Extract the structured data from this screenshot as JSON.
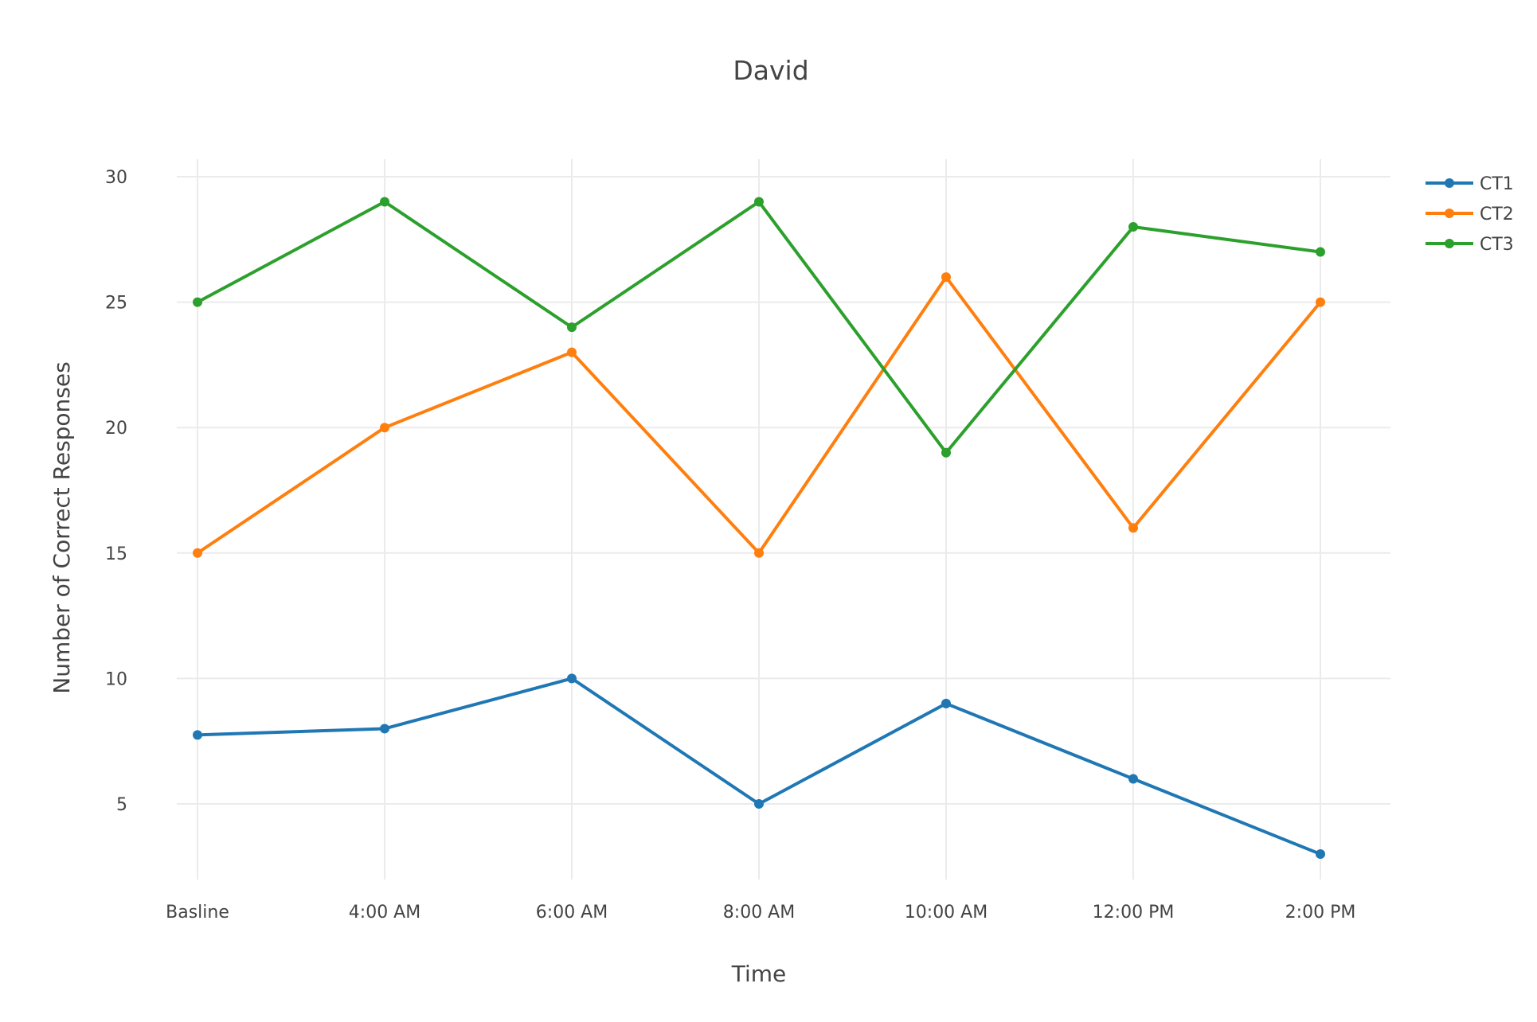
{
  "chart_data": {
    "type": "line",
    "title": "David",
    "xlabel": "Time",
    "ylabel": "Number of Correct Responses",
    "categories": [
      "Basline",
      "4:00 AM",
      "6:00 AM",
      "8:00 AM",
      "10:00 AM",
      "12:00 PM",
      "2:00 PM"
    ],
    "yticks": [
      5,
      10,
      15,
      20,
      25,
      30
    ],
    "ylim": [
      1.3,
      30.7
    ],
    "grid": true,
    "legend_position": "top-right",
    "series": [
      {
        "name": "CT1",
        "color": "#1f77b4",
        "values": [
          7.75,
          8,
          10,
          5,
          9,
          6,
          3
        ]
      },
      {
        "name": "CT2",
        "color": "#ff7f0e",
        "values": [
          15,
          20,
          23,
          15,
          26,
          16,
          25
        ]
      },
      {
        "name": "CT3",
        "color": "#2ca02c",
        "values": [
          25,
          29,
          24,
          29,
          19,
          28,
          27
        ]
      }
    ]
  }
}
